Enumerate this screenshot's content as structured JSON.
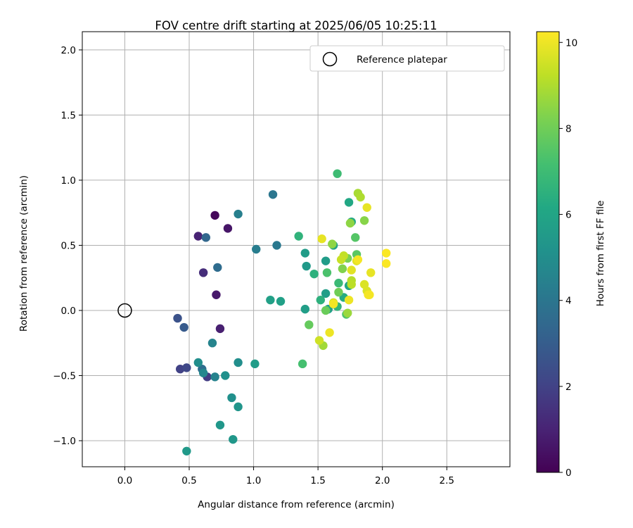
{
  "chart_data": {
    "type": "scatter",
    "title": "FOV centre drift starting at 2025/06/05 10:25:11",
    "xlabel": "Angular distance from reference (arcmin)",
    "ylabel": "Rotation from reference (arcmin)",
    "xlim": [
      -0.33,
      2.99
    ],
    "ylim": [
      -1.2,
      2.14
    ],
    "xticks": [
      0.0,
      0.5,
      1.0,
      1.5,
      2.0,
      2.5
    ],
    "xtick_labels": [
      "0.0",
      "0.5",
      "1.0",
      "1.5",
      "2.0",
      "2.5"
    ],
    "yticks": [
      -1.0,
      -0.5,
      0.0,
      0.5,
      1.0,
      1.5,
      2.0
    ],
    "ytick_labels": [
      "−1.0",
      "−0.5",
      "0.0",
      "0.5",
      "1.0",
      "1.5",
      "2.0"
    ],
    "grid": true,
    "legend": {
      "position": "top-right",
      "entries": [
        "Reference platepar"
      ]
    },
    "reference_point": {
      "x": 0.0,
      "y": 0.0,
      "marker": "open-circle"
    },
    "colorbar": {
      "label": "Hours from first FF file",
      "range": [
        0,
        10.25
      ],
      "ticks": [
        0,
        2,
        4,
        6,
        8,
        10
      ],
      "tick_labels": [
        "0",
        "2",
        "4",
        "6",
        "8",
        "10"
      ],
      "colormap": "viridis"
    },
    "series": [
      {
        "points": [
          {
            "x": 0.7,
            "y": 0.73,
            "c": 0.2
          },
          {
            "x": 0.8,
            "y": 0.63,
            "c": 0.6
          },
          {
            "x": 0.71,
            "y": 0.12,
            "c": 0.7
          },
          {
            "x": 0.74,
            "y": -0.14,
            "c": 0.9
          },
          {
            "x": 0.57,
            "y": 0.57,
            "c": 1.0
          },
          {
            "x": 0.61,
            "y": 0.29,
            "c": 1.3
          },
          {
            "x": 0.64,
            "y": -0.51,
            "c": 1.8
          },
          {
            "x": 0.43,
            "y": -0.45,
            "c": 2.0
          },
          {
            "x": 0.48,
            "y": -0.44,
            "c": 2.2
          },
          {
            "x": 0.41,
            "y": -0.06,
            "c": 2.6
          },
          {
            "x": 0.46,
            "y": -0.13,
            "c": 2.9
          },
          {
            "x": 0.63,
            "y": 0.56,
            "c": 3.4
          },
          {
            "x": 0.72,
            "y": 0.33,
            "c": 3.6
          },
          {
            "x": 0.6,
            "y": -0.45,
            "c": 3.7
          },
          {
            "x": 1.15,
            "y": 0.89,
            "c": 4.0
          },
          {
            "x": 1.18,
            "y": 0.5,
            "c": 4.1
          },
          {
            "x": 1.02,
            "y": 0.47,
            "c": 4.3
          },
          {
            "x": 0.88,
            "y": 0.74,
            "c": 4.4
          },
          {
            "x": 0.68,
            "y": -0.25,
            "c": 4.6
          },
          {
            "x": 0.7,
            "y": -0.51,
            "c": 4.5
          },
          {
            "x": 0.61,
            "y": -0.48,
            "c": 4.7
          },
          {
            "x": 0.57,
            "y": -0.4,
            "c": 5.0
          },
          {
            "x": 0.78,
            "y": -0.5,
            "c": 5.1
          },
          {
            "x": 0.88,
            "y": -0.4,
            "c": 5.0
          },
          {
            "x": 0.83,
            "y": -0.67,
            "c": 5.1
          },
          {
            "x": 0.88,
            "y": -0.74,
            "c": 5.3
          },
          {
            "x": 0.74,
            "y": -0.88,
            "c": 5.4
          },
          {
            "x": 0.84,
            "y": -0.99,
            "c": 5.4
          },
          {
            "x": 0.48,
            "y": -1.08,
            "c": 5.5
          },
          {
            "x": 1.01,
            "y": -0.41,
            "c": 5.6
          },
          {
            "x": 1.13,
            "y": 0.08,
            "c": 5.8
          },
          {
            "x": 1.21,
            "y": 0.07,
            "c": 5.8
          },
          {
            "x": 1.4,
            "y": 0.44,
            "c": 5.6
          },
          {
            "x": 1.41,
            "y": 0.34,
            "c": 5.5
          },
          {
            "x": 1.4,
            "y": 0.01,
            "c": 5.7
          },
          {
            "x": 1.56,
            "y": 0.38,
            "c": 5.6
          },
          {
            "x": 1.56,
            "y": 0.13,
            "c": 5.7
          },
          {
            "x": 1.58,
            "y": 0.01,
            "c": 5.8
          },
          {
            "x": 1.62,
            "y": 0.5,
            "c": 5.9
          },
          {
            "x": 1.74,
            "y": 0.83,
            "c": 6.1
          },
          {
            "x": 1.76,
            "y": 0.68,
            "c": 6.2
          },
          {
            "x": 1.7,
            "y": 0.1,
            "c": 6.3
          },
          {
            "x": 1.74,
            "y": 0.19,
            "c": 6.0
          },
          {
            "x": 1.47,
            "y": 0.28,
            "c": 6.5
          },
          {
            "x": 1.35,
            "y": 0.57,
            "c": 6.6
          },
          {
            "x": 1.52,
            "y": 0.08,
            "c": 6.5
          },
          {
            "x": 1.65,
            "y": 0.03,
            "c": 6.7
          },
          {
            "x": 1.66,
            "y": 0.21,
            "c": 6.9
          },
          {
            "x": 1.65,
            "y": 1.05,
            "c": 7.0
          },
          {
            "x": 1.38,
            "y": -0.41,
            "c": 7.2
          },
          {
            "x": 1.57,
            "y": 0.29,
            "c": 7.3
          },
          {
            "x": 1.79,
            "y": 0.56,
            "c": 7.5
          },
          {
            "x": 1.8,
            "y": 0.43,
            "c": 7.6
          },
          {
            "x": 1.72,
            "y": -0.03,
            "c": 7.4
          },
          {
            "x": 1.43,
            "y": -0.11,
            "c": 7.8
          },
          {
            "x": 1.56,
            "y": 0.0,
            "c": 7.9
          },
          {
            "x": 1.66,
            "y": 0.14,
            "c": 8.0
          },
          {
            "x": 1.73,
            "y": 0.4,
            "c": 8.2
          },
          {
            "x": 1.69,
            "y": 0.32,
            "c": 8.3
          },
          {
            "x": 1.75,
            "y": 0.67,
            "c": 8.5
          },
          {
            "x": 1.86,
            "y": 0.69,
            "c": 8.4
          },
          {
            "x": 1.61,
            "y": 0.51,
            "c": 8.5
          },
          {
            "x": 1.73,
            "y": -0.02,
            "c": 8.7
          },
          {
            "x": 1.54,
            "y": -0.27,
            "c": 8.8
          },
          {
            "x": 1.81,
            "y": 0.9,
            "c": 8.9
          },
          {
            "x": 1.83,
            "y": 0.87,
            "c": 9.0
          },
          {
            "x": 1.76,
            "y": 0.23,
            "c": 9.1
          },
          {
            "x": 1.76,
            "y": 0.2,
            "c": 9.2
          },
          {
            "x": 1.7,
            "y": 0.42,
            "c": 9.3
          },
          {
            "x": 1.68,
            "y": 0.39,
            "c": 9.4
          },
          {
            "x": 1.51,
            "y": -0.23,
            "c": 9.5
          },
          {
            "x": 1.62,
            "y": 0.06,
            "c": 9.6
          },
          {
            "x": 1.86,
            "y": 0.2,
            "c": 9.7
          },
          {
            "x": 1.88,
            "y": 0.15,
            "c": 9.7
          },
          {
            "x": 1.76,
            "y": 0.31,
            "c": 9.8
          },
          {
            "x": 1.8,
            "y": 0.38,
            "c": 9.8
          },
          {
            "x": 1.91,
            "y": 0.29,
            "c": 9.9
          },
          {
            "x": 1.88,
            "y": 0.79,
            "c": 9.9
          },
          {
            "x": 1.53,
            "y": 0.55,
            "c": 9.9
          },
          {
            "x": 1.59,
            "y": -0.17,
            "c": 10.0
          },
          {
            "x": 1.74,
            "y": 0.08,
            "c": 10.0
          },
          {
            "x": 1.89,
            "y": 0.12,
            "c": 10.1
          },
          {
            "x": 1.9,
            "y": 0.12,
            "c": 10.1
          },
          {
            "x": 2.03,
            "y": 0.44,
            "c": 10.2
          },
          {
            "x": 2.03,
            "y": 0.36,
            "c": 10.2
          },
          {
            "x": 1.62,
            "y": 0.05,
            "c": 10.1
          },
          {
            "x": 1.81,
            "y": 0.39,
            "c": 10.1
          }
        ]
      }
    ]
  }
}
